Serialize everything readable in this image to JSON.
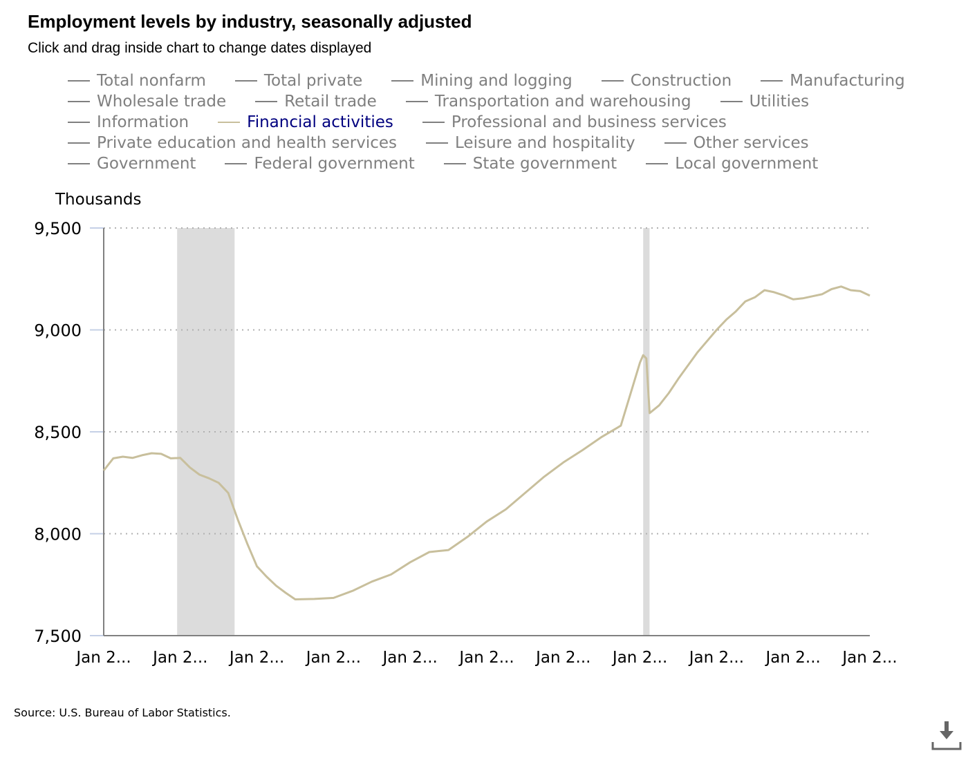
{
  "header": {
    "title": "Employment levels by industry, seasonally adjusted",
    "subtitle": "Click and drag inside chart to change dates displayed"
  },
  "legend": {
    "rows": [
      [
        "Total nonfarm",
        "Total private",
        "Mining and logging",
        "Construction",
        "Manufacturing"
      ],
      [
        "Wholesale trade",
        "Retail trade",
        "Transportation and warehousing",
        "Utilities"
      ],
      [
        "Information",
        "Financial activities",
        "Professional and business services"
      ],
      [
        "Private education and health services",
        "Leisure and hospitality",
        "Other services"
      ],
      [
        "Government",
        "Federal government",
        "State government",
        "Local government"
      ]
    ],
    "active": "Financial activities",
    "inactive_color": "#7f7f7f",
    "active_text_color": "#00007f"
  },
  "footer": {
    "source": "Source: U.S. Bureau of Labor Statistics.",
    "download_icon": "download-icon"
  },
  "chart_data": {
    "type": "line",
    "title": "Employment levels by industry, seasonally adjusted",
    "ylabel": "Thousands",
    "xlabel": "",
    "ylim": [
      7500,
      9500
    ],
    "yticks": [
      7500,
      8000,
      8500,
      9000,
      9500
    ],
    "ytick_labels": [
      "7,500",
      "8,000",
      "8,500",
      "9,000",
      "9,500"
    ],
    "xlim": [
      "2006-01",
      "2026-01"
    ],
    "xtick_labels": [
      "Jan 2...",
      "Jan 2...",
      "Jan 2...",
      "Jan 2...",
      "Jan 2...",
      "Jan 2...",
      "Jan 2...",
      "Jan 2...",
      "Jan 2...",
      "Jan 2...",
      "Jan 2..."
    ],
    "grid": "horizontal dotted",
    "recession_bands": [
      [
        "2007-12",
        "2009-06"
      ],
      [
        "2020-02",
        "2020-04"
      ]
    ],
    "series": [
      {
        "name": "Financial activities",
        "color": "#c8bf9c",
        "x": [
          "2006-01",
          "2006-04",
          "2006-07",
          "2006-10",
          "2007-01",
          "2007-04",
          "2007-07",
          "2007-10",
          "2008-01",
          "2008-04",
          "2008-07",
          "2008-10",
          "2009-01",
          "2009-04",
          "2009-07",
          "2009-10",
          "2010-01",
          "2010-04",
          "2010-07",
          "2010-10",
          "2011-01",
          "2011-07",
          "2012-01",
          "2012-07",
          "2013-01",
          "2013-07",
          "2014-01",
          "2014-07",
          "2015-01",
          "2015-07",
          "2016-01",
          "2016-07",
          "2017-01",
          "2017-07",
          "2018-01",
          "2018-07",
          "2019-01",
          "2019-07",
          "2020-01",
          "2020-02",
          "2020-03",
          "2020-04",
          "2020-07",
          "2020-10",
          "2021-01",
          "2021-07",
          "2022-01",
          "2022-04",
          "2022-07",
          "2022-10",
          "2023-01",
          "2023-04",
          "2023-07",
          "2023-10",
          "2024-01",
          "2024-04",
          "2024-07",
          "2024-10",
          "2025-01",
          "2025-04",
          "2025-07",
          "2025-10",
          "2026-01"
        ],
        "values": [
          8310,
          8370,
          8378,
          8372,
          8385,
          8395,
          8392,
          8370,
          8372,
          8325,
          8290,
          8272,
          8250,
          8200,
          8070,
          7950,
          7840,
          7790,
          7745,
          7710,
          7678,
          7680,
          7685,
          7720,
          7765,
          7800,
          7860,
          7910,
          7920,
          7985,
          8060,
          8120,
          8200,
          8280,
          8350,
          8410,
          8475,
          8530,
          8840,
          8876,
          8860,
          8592,
          8630,
          8690,
          8760,
          8890,
          9000,
          9050,
          9090,
          9140,
          9160,
          9195,
          9185,
          9170,
          9150,
          9155,
          9165,
          9175,
          9200,
          9213,
          9195,
          9190,
          9168
        ]
      }
    ]
  }
}
